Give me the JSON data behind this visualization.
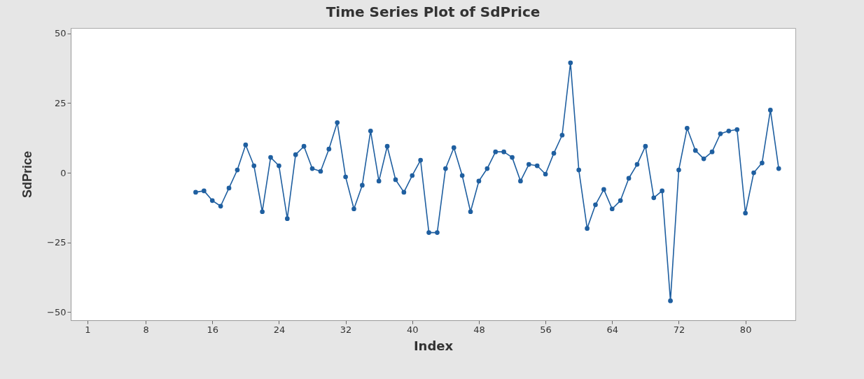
{
  "chart_data": {
    "type": "line",
    "title": "Time Series Plot of SdPrice",
    "xlabel": "Index",
    "ylabel": "SdPrice",
    "x": [
      14,
      15,
      16,
      17,
      18,
      19,
      20,
      21,
      22,
      23,
      24,
      25,
      26,
      27,
      28,
      29,
      30,
      31,
      32,
      33,
      34,
      35,
      36,
      37,
      38,
      39,
      40,
      41,
      42,
      43,
      44,
      45,
      46,
      47,
      48,
      49,
      50,
      51,
      52,
      53,
      54,
      55,
      56,
      57,
      58,
      59,
      60,
      61,
      62,
      63,
      64,
      65,
      66,
      67,
      68,
      69,
      70,
      71,
      72,
      73,
      74,
      75,
      76,
      77,
      78,
      79,
      80,
      81,
      82,
      83,
      84
    ],
    "series": [
      {
        "color": "#1f5fa0",
        "values": [
          -7,
          -6.5,
          -10,
          -12,
          -5.5,
          1,
          10,
          2.5,
          -14,
          5.5,
          2.5,
          -16.5,
          6.5,
          9.5,
          1.5,
          0.5,
          8.5,
          18,
          -1.5,
          -13,
          -4.5,
          15,
          -3,
          9.5,
          -2.5,
          -7,
          -1,
          4.5,
          -21.5,
          -21.5,
          1.5,
          9,
          -1,
          -14,
          -3,
          1.5,
          7.5,
          7.5,
          5.5,
          -3,
          3,
          2.5,
          -0.5,
          7,
          13.5,
          39.5,
          1,
          -20,
          -11.5,
          -6,
          -13,
          -10,
          -2,
          3,
          9.5,
          -9,
          -6.5,
          -46,
          1,
          16,
          8,
          5,
          7.5,
          14,
          15,
          15.5,
          -14.5,
          0,
          3.5,
          22.5,
          1.5
        ]
      }
    ],
    "xlim": [
      -1,
      86
    ],
    "xticks": [
      1,
      8,
      16,
      24,
      32,
      40,
      48,
      56,
      64,
      72,
      80
    ],
    "ylim": [
      -53,
      52
    ],
    "yticks": [
      -50,
      -25,
      0,
      25,
      50
    ],
    "grid": false,
    "marker": "circle",
    "line_style": "solid"
  }
}
